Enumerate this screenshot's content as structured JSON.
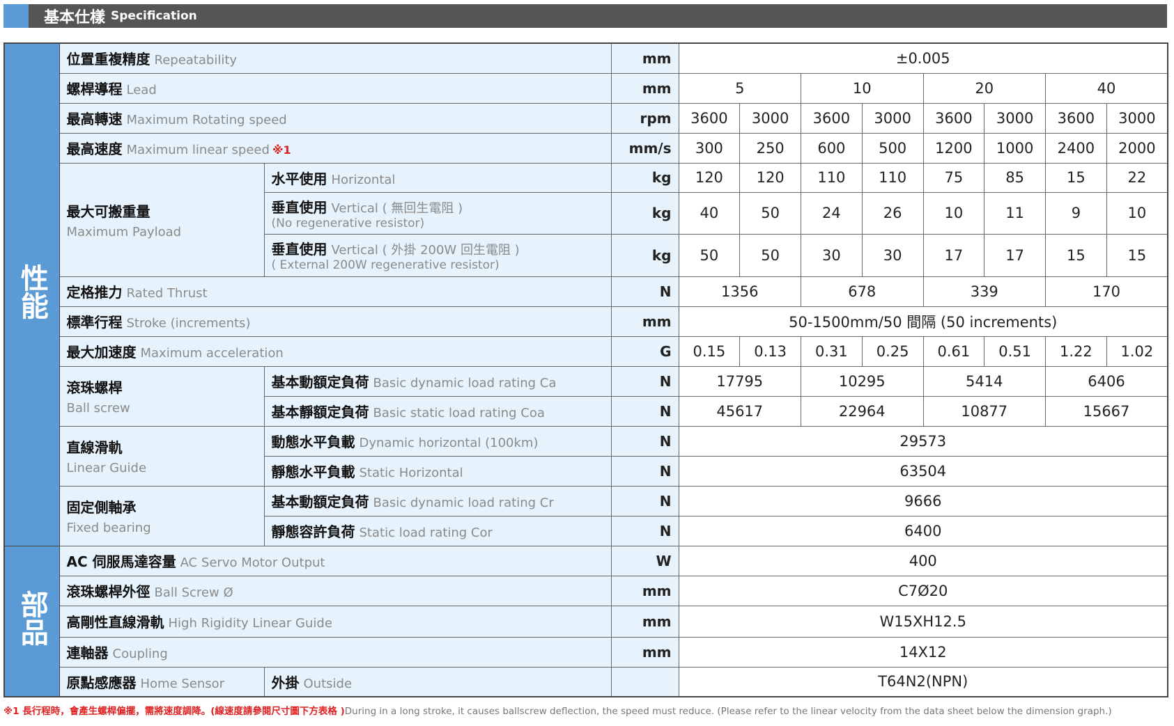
{
  "header": {
    "title_cn": "基本仕樣",
    "title_en": "Specification",
    "accent": "#5b9bd5"
  },
  "sections": [
    {
      "label": "性能",
      "entries": [
        {
          "cn": "位置重複精度",
          "en": "Repeatability",
          "unit": "mm",
          "values": [
            "±0.005"
          ],
          "h": 43
        },
        {
          "cn": "螺桿導程",
          "en": "Lead",
          "unit": "mm",
          "values": [
            "5",
            "10",
            "20",
            "40"
          ],
          "h": 43
        },
        {
          "cn": "最高轉速",
          "en": "Maximum Rotating speed",
          "unit": "rpm",
          "values": [
            "3600",
            "3000",
            "3600",
            "3000",
            "3600",
            "3000",
            "3600",
            "3000"
          ],
          "h": 43
        },
        {
          "cn": "最高速度",
          "en": "Maximum linear speed",
          "mark": "※1",
          "unit": "mm/s",
          "values": [
            "300",
            "250",
            "600",
            "500",
            "1200",
            "1000",
            "2400",
            "2000"
          ],
          "h": 43
        },
        {
          "cn": "最大可搬重量",
          "en": "Maximum Payload",
          "items": [
            {
              "cn": "水平使用",
              "en": "Horizontal",
              "unit": "kg",
              "values": [
                "120",
                "120",
                "110",
                "110",
                "75",
                "85",
                "15",
                "22"
              ],
              "h": 42
            },
            {
              "cn": "垂直使用",
              "en": "Vertical ( 無回生電阻 )",
              "en2": "(No regenerative resistor)",
              "unit": "kg",
              "values": [
                "40",
                "50",
                "24",
                "26",
                "10",
                "11",
                "9",
                "10"
              ],
              "h": 60
            },
            {
              "cn": "垂直使用",
              "en": "Vertical ( 外掛 200W 回生電阻 )",
              "en2": "( External 200W regenerative resistor)",
              "unit": "kg",
              "values": [
                "50",
                "50",
                "30",
                "30",
                "17",
                "17",
                "15",
                "15"
              ],
              "h": 61
            }
          ]
        },
        {
          "cn": "定格推力",
          "en": "Rated Thrust",
          "unit": "N",
          "values": [
            "1356",
            "678",
            "339",
            "170"
          ],
          "h": 43
        },
        {
          "cn": "標準行程",
          "en": "Stroke (increments)",
          "unit": "mm",
          "values": [
            "50-1500mm/50 間隔 (50 increments)"
          ],
          "h": 43
        },
        {
          "cn": "最大加速度",
          "en": "Maximum acceleration",
          "unit": "G",
          "values": [
            "0.15",
            "0.13",
            "0.31",
            "0.25",
            "0.61",
            "0.51",
            "1.22",
            "1.02"
          ],
          "h": 43
        },
        {
          "cn": "滾珠螺桿",
          "en": "Ball screw",
          "items": [
            {
              "cn": "基本動額定負荷",
              "en": "Basic dynamic load rating Ca",
              "unit": "N",
              "values": [
                "17795",
                "10295",
                "5414",
                "6406"
              ],
              "h": 43
            },
            {
              "cn": "基本靜額定負荷",
              "en": "Basic static load rating Coa",
              "unit": "N",
              "values": [
                "45617",
                "22964",
                "10877",
                "15667"
              ],
              "h": 43
            }
          ]
        },
        {
          "cn": "直線滑軌",
          "en": "Linear Guide",
          "items": [
            {
              "cn": "動態水平負載",
              "en": "Dynamic horizontal (100km)",
              "unit": "N",
              "values": [
                "29573"
              ],
              "h": 43
            },
            {
              "cn": "靜態水平負載",
              "en": "Static Horizontal",
              "unit": "N",
              "values": [
                "63504"
              ],
              "h": 43
            }
          ]
        },
        {
          "cn": "固定側軸承",
          "en": "Fixed bearing",
          "items": [
            {
              "cn": "基本動額定負荷",
              "en": "Basic dynamic load rating Cr",
              "unit": "N",
              "values": [
                "9666"
              ],
              "h": 43
            },
            {
              "cn": "靜態容許負荷",
              "en": "Static load rating Cor",
              "unit": "N",
              "values": [
                "6400"
              ],
              "h": 43
            }
          ]
        }
      ]
    },
    {
      "label": "部品",
      "entries": [
        {
          "cn": "AC 伺服馬達容量",
          "en": "AC Servo Motor Output",
          "unit": "W",
          "values": [
            "400"
          ],
          "h": 43
        },
        {
          "cn": "滾珠螺桿外徑",
          "en": "Ball Screw Ø",
          "unit": "mm",
          "values": [
            "C7Ø20"
          ],
          "h": 43
        },
        {
          "cn": "高剛性直線滑軌",
          "en": "High Rigidity Linear Guide",
          "unit": "mm",
          "values": [
            "W15XH12.5"
          ],
          "h": 45
        },
        {
          "cn": "連軸器",
          "en": "Coupling",
          "unit": "mm",
          "values": [
            "14X12"
          ],
          "h": 43
        },
        {
          "cn": "原點感應器",
          "en": "Home Sensor",
          "inline": true,
          "items": [
            {
              "cn": "外掛",
              "en": "Outside",
              "unit": "",
              "values": [
                "T64N2(NPN)"
              ],
              "h": 43
            }
          ]
        }
      ]
    }
  ],
  "footnote": {
    "cn": "※1 長行程時，會產生螺桿偏擺，需將速度調降。(線速度請參閱尺寸圖下方表格 )",
    "en": "During in a long stroke, it causes ballscrew deflection, the speed must reduce. (Please refer to the linear velocity from the data sheet below the dimension graph.)"
  }
}
